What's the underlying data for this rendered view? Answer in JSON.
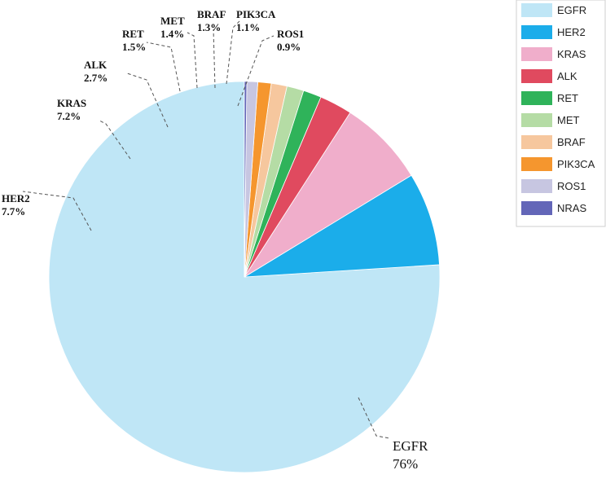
{
  "chart_data": {
    "type": "pie",
    "slices": [
      {
        "name": "EGFR",
        "value": 76,
        "label": "76%",
        "color": "#bfe6f6"
      },
      {
        "name": "HER2",
        "value": 7.7,
        "label": "7.7%",
        "color": "#1badea"
      },
      {
        "name": "KRAS",
        "value": 7.2,
        "label": "7.2%",
        "color": "#f0aecb"
      },
      {
        "name": "ALK",
        "value": 2.7,
        "label": "2.7%",
        "color": "#e04a5f"
      },
      {
        "name": "RET",
        "value": 1.5,
        "label": "1.5%",
        "color": "#2fb35a"
      },
      {
        "name": "MET",
        "value": 1.4,
        "label": "1.4%",
        "color": "#b5dca5"
      },
      {
        "name": "BRAF",
        "value": 1.3,
        "label": "1.3%",
        "color": "#f6c79e"
      },
      {
        "name": "PIK3CA",
        "value": 1.1,
        "label": "1.1%",
        "color": "#f5962e"
      },
      {
        "name": "ROS1",
        "value": 0.9,
        "label": "0.9%",
        "color": "#c7c6e1"
      },
      {
        "name": "NRAS",
        "value": 0.2,
        "label": "",
        "color": "#6366b8"
      }
    ],
    "legend": {
      "placement": "top-right",
      "entries": [
        "EGFR",
        "HER2",
        "KRAS",
        "ALK",
        "RET",
        "MET",
        "BRAF",
        "PIK3CA",
        "ROS1",
        "NRAS"
      ]
    }
  }
}
